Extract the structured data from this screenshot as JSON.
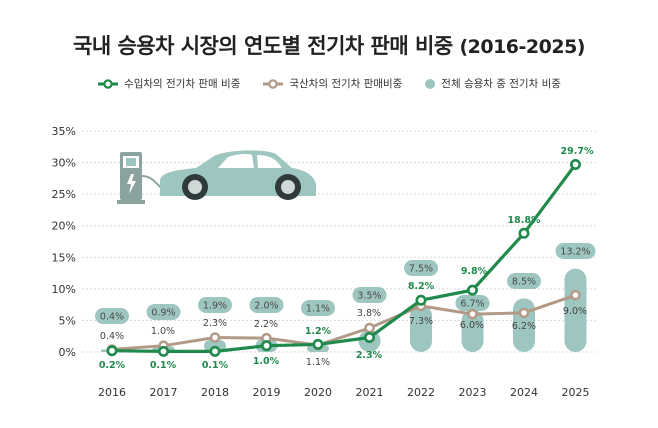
{
  "title": "국내 승용차 시장의 연도별 전기차 판매 비중",
  "title_years": "(2016-2025)",
  "colors": {
    "imported": "#1f8a4c",
    "domestic": "#b39a86",
    "total": "#9ec6c0",
    "total_badge_text": "#4a4a4a",
    "grid": "#d9d9d9"
  },
  "icons": [
    "ev-charger-icon",
    "electric-car-icon"
  ],
  "chart_data": {
    "type": "line",
    "x": [
      "2016",
      "2017",
      "2018",
      "2019",
      "2020",
      "2021",
      "2022",
      "2023",
      "2024",
      "2025"
    ],
    "ylim": [
      0,
      35
    ],
    "yticks": [
      "0%",
      "5%",
      "10%",
      "15%",
      "20%",
      "25%",
      "30%",
      "35%"
    ],
    "grid": true,
    "legend": "top",
    "series": [
      {
        "name": "수입차의 전기차 판매 비중",
        "type": "line",
        "values": [
          0.2,
          0.1,
          0.1,
          1.0,
          1.2,
          2.3,
          8.2,
          9.8,
          18.8,
          29.7
        ],
        "labels": [
          "0.2%",
          "0.1%",
          "0.1%",
          "1.0%",
          "1.2%",
          "2.3%",
          "8.2%",
          "9.8%",
          "18.8%",
          "29.7%"
        ]
      },
      {
        "name": "국산차의 전기차 판매비중",
        "type": "line",
        "values": [
          0.4,
          1.0,
          2.3,
          2.2,
          1.1,
          3.8,
          7.3,
          6.0,
          6.2,
          9.0
        ],
        "labels": [
          "0.4%",
          "1.0%",
          "2.3%",
          "2.2%",
          "1.1%",
          "3.8%",
          "7.3%",
          "6.0%",
          "6.2%",
          "9.0%"
        ]
      },
      {
        "name": "전체 승용차 중 전기차 비중",
        "type": "bar",
        "values": [
          0.4,
          0.9,
          1.9,
          2.0,
          1.1,
          3.5,
          7.5,
          6.7,
          8.5,
          13.2
        ],
        "labels": [
          "0.4%",
          "0.9%",
          "1.9%",
          "2.0%",
          "1.1%",
          "3.5%",
          "7.5%",
          "6.7%",
          "8.5%",
          "13.2%"
        ]
      }
    ]
  }
}
